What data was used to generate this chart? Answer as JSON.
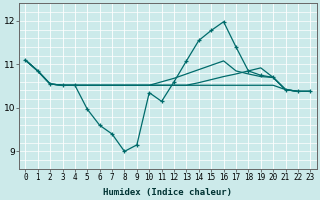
{
  "xlabel": "Humidex (Indice chaleur)",
  "bg_color": "#cceaea",
  "plot_bg_color": "#cceaea",
  "grid_color": "#ffffff",
  "grid_color2": "#f5aaaa",
  "line_color": "#006b6b",
  "x_ticks": [
    0,
    1,
    2,
    3,
    4,
    5,
    6,
    7,
    8,
    9,
    10,
    11,
    12,
    13,
    14,
    15,
    16,
    17,
    18,
    19,
    20,
    21,
    22,
    23
  ],
  "x_labels": [
    "0",
    "1",
    "2",
    "3",
    "4",
    "5",
    "6",
    "7",
    "8",
    "9",
    "10",
    "11",
    "12",
    "13",
    "14",
    "15",
    "16",
    "17",
    "18",
    "19",
    "20",
    "21",
    "22",
    "23"
  ],
  "y_ticks": [
    9,
    10,
    11,
    12
  ],
  "ylim": [
    8.6,
    12.4
  ],
  "xlim": [
    -0.5,
    23.5
  ],
  "series": [
    [
      11.1,
      10.85,
      10.55,
      10.52,
      10.52,
      9.97,
      9.6,
      9.4,
      9.0,
      9.15,
      10.35,
      10.15,
      10.6,
      11.08,
      11.55,
      11.78,
      11.98,
      11.4,
      10.85,
      10.75,
      10.7,
      10.42,
      10.38,
      10.38
    ],
    [
      11.1,
      10.85,
      10.55,
      10.52,
      10.52,
      10.52,
      10.52,
      10.52,
      10.52,
      10.52,
      10.52,
      10.52,
      10.52,
      10.52,
      10.58,
      10.65,
      10.72,
      10.78,
      10.85,
      10.92,
      10.7,
      10.42,
      10.38,
      10.38
    ],
    [
      11.1,
      10.85,
      10.55,
      10.52,
      10.52,
      10.52,
      10.52,
      10.52,
      10.52,
      10.52,
      10.52,
      10.52,
      10.52,
      10.52,
      10.52,
      10.52,
      10.52,
      10.52,
      10.52,
      10.52,
      10.52,
      10.42,
      10.38,
      10.38
    ],
    [
      11.1,
      10.85,
      10.55,
      10.52,
      10.52,
      10.52,
      10.52,
      10.52,
      10.52,
      10.52,
      10.52,
      10.6,
      10.68,
      10.78,
      10.88,
      10.98,
      11.08,
      10.85,
      10.78,
      10.72,
      10.7,
      10.42,
      10.38,
      10.38
    ]
  ],
  "marker_series": 0,
  "xlabel_fontsize": 6.5,
  "xlabel_color": "#003333",
  "tick_fontsize": 5.5,
  "ytick_fontsize": 6.5
}
